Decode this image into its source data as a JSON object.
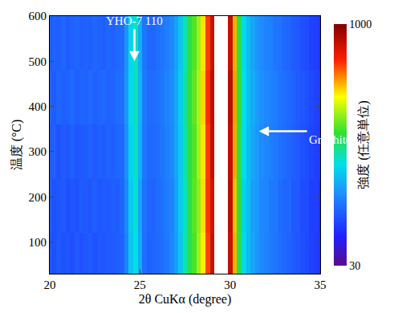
{
  "chart_data": {
    "type": "heatmap",
    "x_label": "2θ CuKα (degree)",
    "y_label": "温度 (°C)",
    "colorbar_title": "強度 (任意単位)",
    "xlim": [
      20,
      35
    ],
    "ylim": [
      30,
      600
    ],
    "xticks": [
      20,
      25,
      30,
      35
    ],
    "yticks": [
      100,
      200,
      300,
      400,
      500,
      600
    ],
    "colorbar_range": [
      30,
      1000
    ],
    "colorbar_ticks": [
      30,
      1000
    ],
    "x": [
      20,
      20.25,
      20.5,
      20.75,
      21,
      21.25,
      21.5,
      21.75,
      22,
      22.25,
      22.5,
      22.75,
      23,
      23.25,
      23.5,
      23.75,
      24,
      24.25,
      24.5,
      24.75,
      25,
      25.25,
      25.5,
      25.75,
      26,
      26.25,
      26.5,
      26.75,
      27,
      27.25,
      27.5,
      27.75,
      28,
      28.25,
      28.5,
      28.75,
      29,
      29.25,
      29.5,
      29.75,
      30,
      30.25,
      30.5,
      30.75,
      31,
      31.25,
      31.5,
      31.75,
      32,
      32.25,
      32.5,
      32.75,
      33,
      33.25,
      33.5,
      33.75,
      34,
      34.25,
      34.5,
      34.75,
      35
    ],
    "y": [
      60,
      180,
      300,
      420,
      540
    ],
    "z": [
      [
        230,
        220,
        235,
        225,
        230,
        220,
        235,
        225,
        230,
        240,
        225,
        235,
        230,
        240,
        235,
        245,
        250,
        300,
        400,
        440,
        360,
        270,
        250,
        255,
        260,
        270,
        285,
        305,
        340,
        400,
        480,
        540,
        580,
        640,
        720,
        830,
        920,
        1200,
        1500,
        1300,
        920,
        760,
        540,
        430,
        380,
        350,
        330,
        310,
        300,
        290,
        280,
        270,
        260,
        250,
        240,
        230,
        220,
        210,
        200,
        190,
        180
      ],
      [
        240,
        225,
        230,
        235,
        220,
        230,
        225,
        240,
        235,
        230,
        245,
        230,
        240,
        235,
        245,
        240,
        255,
        310,
        410,
        450,
        350,
        275,
        255,
        250,
        265,
        275,
        290,
        300,
        345,
        410,
        470,
        545,
        590,
        630,
        730,
        840,
        910,
        1210,
        1500,
        1310,
        930,
        750,
        550,
        420,
        390,
        345,
        335,
        305,
        305,
        285,
        285,
        265,
        255,
        255,
        235,
        235,
        215,
        215,
        195,
        195,
        175
      ],
      [
        235,
        245,
        225,
        240,
        230,
        245,
        230,
        235,
        240,
        250,
        235,
        245,
        240,
        250,
        245,
        255,
        260,
        320,
        420,
        460,
        370,
        280,
        260,
        260,
        270,
        280,
        295,
        310,
        350,
        405,
        485,
        550,
        585,
        645,
        725,
        835,
        925,
        1200,
        1500,
        1300,
        925,
        765,
        545,
        435,
        385,
        355,
        335,
        315,
        305,
        295,
        285,
        275,
        265,
        255,
        245,
        235,
        225,
        215,
        205,
        195,
        185
      ],
      [
        250,
        240,
        255,
        245,
        250,
        260,
        245,
        255,
        250,
        260,
        250,
        255,
        260,
        250,
        255,
        265,
        270,
        330,
        430,
        470,
        375,
        285,
        265,
        265,
        275,
        285,
        300,
        315,
        355,
        410,
        490,
        555,
        595,
        650,
        735,
        845,
        930,
        1210,
        1500,
        1310,
        935,
        770,
        555,
        440,
        390,
        360,
        340,
        320,
        310,
        300,
        290,
        280,
        270,
        260,
        250,
        240,
        230,
        220,
        210,
        200,
        190
      ],
      [
        240,
        250,
        245,
        255,
        240,
        250,
        255,
        245,
        250,
        245,
        255,
        250,
        245,
        255,
        250,
        260,
        265,
        325,
        425,
        465,
        365,
        280,
        260,
        255,
        270,
        280,
        295,
        310,
        345,
        400,
        480,
        545,
        585,
        640,
        725,
        835,
        920,
        1200,
        1500,
        1300,
        920,
        760,
        545,
        430,
        385,
        350,
        330,
        315,
        300,
        295,
        280,
        275,
        260,
        255,
        240,
        235,
        220,
        215,
        200,
        195,
        180
      ]
    ],
    "annotations": [
      {
        "text": "YHO-7 110",
        "x": 24.7,
        "y": 500,
        "arrow": "down"
      },
      {
        "text": "Graphite",
        "x": 31.6,
        "y": 345,
        "arrow": "left"
      }
    ]
  }
}
